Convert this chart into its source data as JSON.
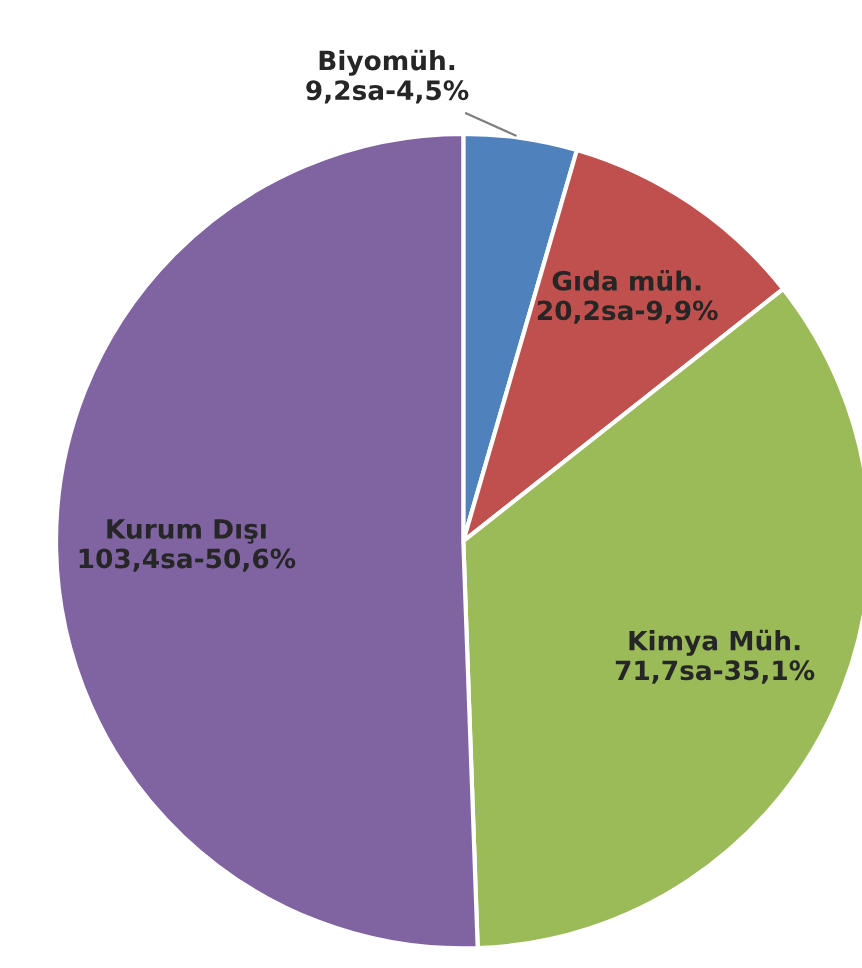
{
  "chart_data": {
    "type": "pie",
    "categories": [
      "Biyomüh.",
      "Gıda müh.",
      "Kimya Müh.",
      "Kurum Dışı"
    ],
    "values": [
      9.2,
      20.2,
      71.7,
      103.4
    ],
    "value_labels": [
      "9,2sa-4,5%",
      "20,2sa-9,9%",
      "71,7sa-35,1%",
      "103,4sa-50,6%"
    ],
    "colors": [
      "#4f81bd",
      "#c0504d",
      "#9bbb59",
      "#8064a2"
    ],
    "legend": false
  }
}
